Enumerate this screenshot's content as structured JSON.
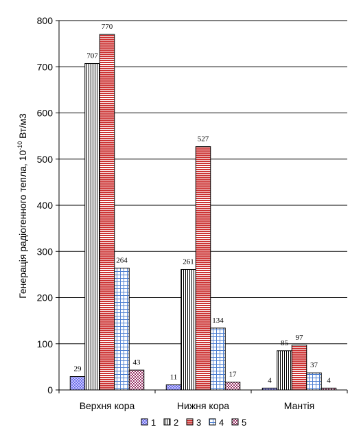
{
  "chart_data": {
    "type": "bar",
    "categories": [
      "Верхня кора",
      "Нижня кора",
      "Мантія"
    ],
    "series": [
      {
        "name": "1",
        "values": [
          29,
          11,
          4
        ]
      },
      {
        "name": "2",
        "values": [
          707,
          261,
          85
        ]
      },
      {
        "name": "3",
        "values": [
          770,
          527,
          97
        ]
      },
      {
        "name": "4",
        "values": [
          264,
          134,
          37
        ]
      },
      {
        "name": "5",
        "values": [
          43,
          17,
          4
        ]
      }
    ],
    "ylabel": {
      "prefix": "Генерація радіогенного тепла, 10",
      "sup": "-10",
      "suffix": " Вт/м3"
    },
    "xlabel": "",
    "ylim": [
      0,
      800
    ],
    "yticks": [
      "0",
      "100",
      "200",
      "300",
      "400",
      "500",
      "600",
      "700",
      "800"
    ],
    "grid": true,
    "legend_position": "bottom",
    "series_styles": [
      {
        "pattern": "checker",
        "color": "#9999ff"
      },
      {
        "pattern": "vlines",
        "color": "#000000"
      },
      {
        "pattern": "hlines",
        "color": "#cc3333"
      },
      {
        "pattern": "grid",
        "color": "#4d7fd1"
      },
      {
        "pattern": "diagcheck",
        "color": "#993366"
      }
    ]
  }
}
